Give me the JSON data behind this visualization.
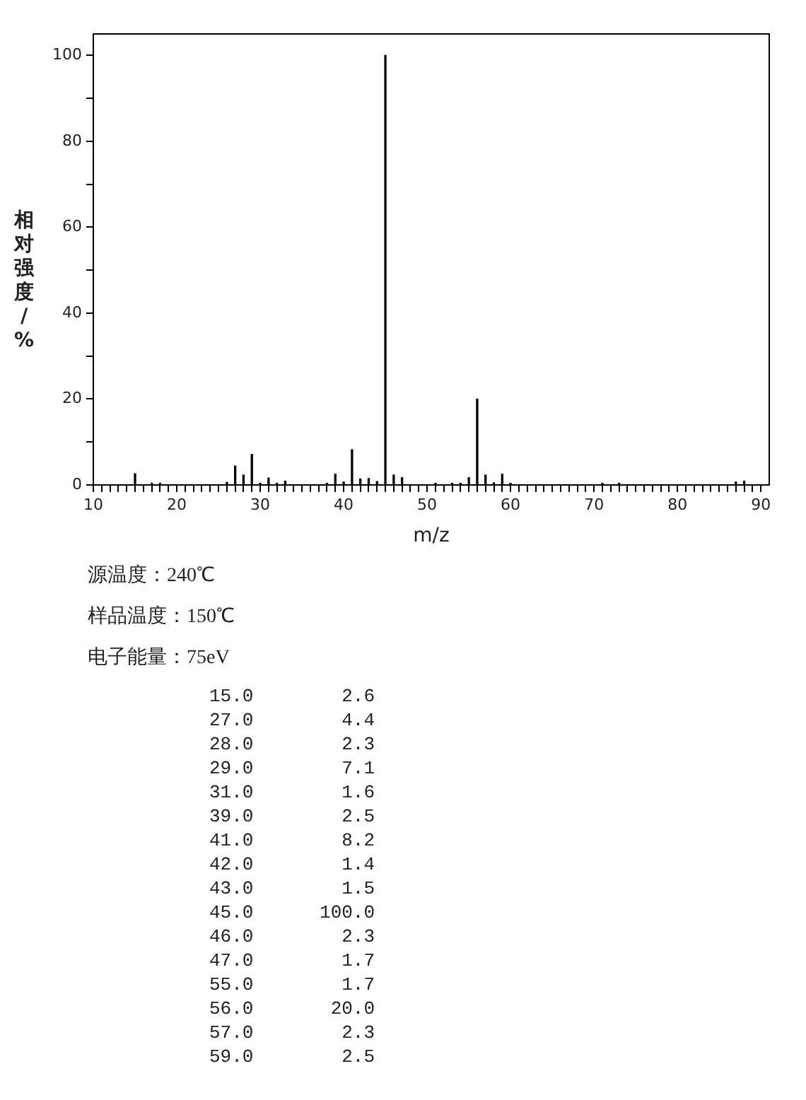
{
  "chart_data": {
    "type": "bar",
    "xlabel": "m/z",
    "ylabel": "相对强度/%",
    "x": [
      15,
      17,
      18,
      26,
      27,
      28,
      29,
      30,
      31,
      32,
      33,
      38,
      39,
      40,
      41,
      42,
      43,
      44,
      45,
      46,
      47,
      51,
      53,
      54,
      55,
      56,
      57,
      58,
      59,
      60,
      71,
      73,
      87,
      88
    ],
    "values": [
      2.6,
      0.4,
      0.4,
      0.6,
      4.4,
      2.3,
      7.1,
      0.4,
      1.6,
      0.4,
      0.9,
      0.4,
      2.5,
      0.7,
      8.2,
      1.4,
      1.5,
      0.8,
      100.0,
      2.3,
      1.7,
      0.4,
      0.4,
      0.4,
      1.7,
      20.0,
      2.3,
      0.5,
      2.5,
      0.4,
      0.4,
      0.4,
      0.7,
      0.9
    ],
    "color": "#000000",
    "xlim": [
      10,
      91
    ],
    "ylim": [
      0,
      105
    ],
    "xticks": [
      10,
      {
        "value": 11,
        "label": null
      },
      {
        "value": 12,
        "label": null
      },
      {
        "value": 13,
        "label": null
      },
      {
        "value": 14,
        "label": null
      },
      {
        "value": 15,
        "label": null
      },
      {
        "value": 16,
        "label": null
      },
      {
        "value": 17,
        "label": null
      },
      {
        "value": 18,
        "label": null
      },
      {
        "value": 19,
        "label": null
      },
      20,
      {
        "value": 21,
        "label": null
      },
      {
        "value": 22,
        "label": null
      },
      {
        "value": 23,
        "label": null
      },
      {
        "value": 24,
        "label": null
      },
      {
        "value": 25,
        "label": null
      },
      {
        "value": 26,
        "label": null
      },
      {
        "value": 27,
        "label": null
      },
      {
        "value": 28,
        "label": null
      },
      {
        "value": 29,
        "label": null
      },
      30,
      {
        "value": 31,
        "label": null
      },
      {
        "value": 32,
        "label": null
      },
      {
        "value": 33,
        "label": null
      },
      {
        "value": 34,
        "label": null
      },
      {
        "value": 35,
        "label": null
      },
      {
        "value": 36,
        "label": null
      },
      {
        "value": 37,
        "label": null
      },
      {
        "value": 38,
        "label": null
      },
      {
        "value": 39,
        "label": null
      },
      40,
      {
        "value": 41,
        "label": null
      },
      {
        "value": 42,
        "label": null
      },
      {
        "value": 43,
        "label": null
      },
      {
        "value": 44,
        "label": null
      },
      {
        "value": 45,
        "label": null
      },
      {
        "value": 46,
        "label": null
      },
      {
        "value": 47,
        "label": null
      },
      {
        "value": 48,
        "label": null
      },
      {
        "value": 49,
        "label": null
      },
      50,
      {
        "value": 51,
        "label": null
      },
      {
        "value": 52,
        "label": null
      },
      {
        "value": 53,
        "label": null
      },
      {
        "value": 54,
        "label": null
      },
      {
        "value": 55,
        "label": null
      },
      {
        "value": 56,
        "label": null
      },
      {
        "value": 57,
        "label": null
      },
      {
        "value": 58,
        "label": null
      },
      {
        "value": 59,
        "label": null
      },
      60,
      {
        "value": 61,
        "label": null
      },
      {
        "value": 62,
        "label": null
      },
      {
        "value": 63,
        "label": null
      },
      {
        "value": 64,
        "label": null
      },
      {
        "value": 65,
        "label": null
      },
      {
        "value": 66,
        "label": null
      },
      {
        "value": 67,
        "label": null
      },
      {
        "value": 68,
        "label": null
      },
      {
        "value": 69,
        "label": null
      },
      70,
      {
        "value": 71,
        "label": null
      },
      {
        "value": 72,
        "label": null
      },
      {
        "value": 73,
        "label": null
      },
      {
        "value": 74,
        "label": null
      },
      {
        "value": 75,
        "label": null
      },
      {
        "value": 76,
        "label": null
      },
      {
        "value": 77,
        "label": null
      },
      {
        "value": 78,
        "label": null
      },
      {
        "value": 79,
        "label": null
      },
      80,
      {
        "value": 81,
        "label": null
      },
      {
        "value": 82,
        "label": null
      },
      {
        "value": 83,
        "label": null
      },
      {
        "value": 84,
        "label": null
      },
      {
        "value": 85,
        "label": null
      },
      {
        "value": 86,
        "label": null
      },
      {
        "value": 87,
        "label": null
      },
      {
        "value": 88,
        "label": null
      },
      {
        "value": 89,
        "label": null
      },
      90
    ],
    "yticks": [
      0,
      {
        "value": 10,
        "label": null
      },
      20,
      {
        "value": 30,
        "label": null
      },
      40,
      {
        "value": 50,
        "label": null
      },
      60,
      {
        "value": 70,
        "label": null
      },
      80,
      {
        "value": 90,
        "label": null
      },
      100
    ],
    "grid": false,
    "legend": false,
    "annotations": [
      "源温度：240℃",
      "样品温度：150℃",
      "电子能量：75eV",
      "15.0        2.6",
      "27.0        4.4",
      "28.0        2.3",
      "29.0        7.1",
      "31.0        1.6",
      "39.0        2.5",
      "41.0        8.2",
      "42.0        1.4",
      "43.0        1.5",
      "45.0      100.0",
      "46.0        2.3",
      "47.0        1.7",
      "55.0        1.7",
      "56.0       20.0",
      "57.0        2.3",
      "59.0        2.5"
    ]
  }
}
